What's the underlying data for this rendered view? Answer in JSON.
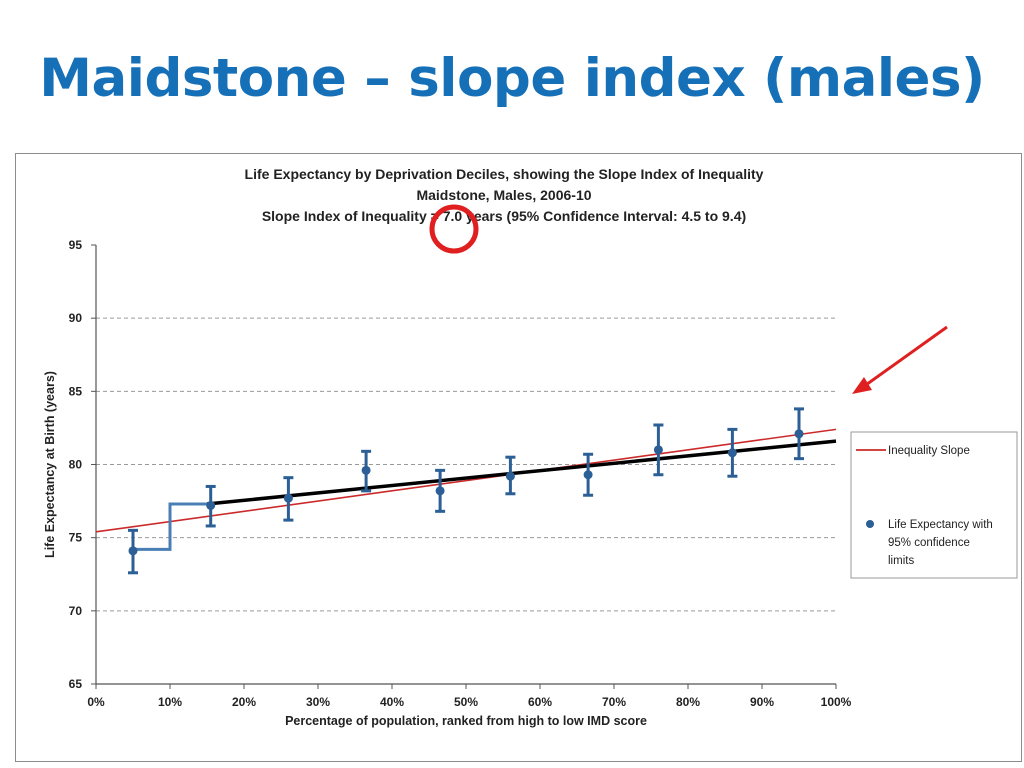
{
  "slide": {
    "title": "Maidstone – slope index (males)"
  },
  "chart_data": {
    "type": "scatter",
    "title_lines": [
      "Life Expectancy by Deprivation Deciles, showing the Slope Index of Inequality",
      "Maidstone, Males, 2006-10",
      "Slope Index of Inequality = 7.0 years (95% Confidence Interval: 4.5 to 9.4)"
    ],
    "xlabel": "Percentage of population, ranked from high to low IMD score",
    "ylabel": "Life Expectancy at Birth (years)",
    "xlim": [
      0,
      100
    ],
    "ylim": [
      65,
      95
    ],
    "x_ticks": [
      0,
      10,
      20,
      30,
      40,
      50,
      60,
      70,
      80,
      90,
      100
    ],
    "x_tick_labels": [
      "0%",
      "10%",
      "20%",
      "30%",
      "40%",
      "50%",
      "60%",
      "70%",
      "80%",
      "90%",
      "100%"
    ],
    "y_ticks": [
      65,
      70,
      75,
      80,
      85,
      90,
      95
    ],
    "y_tick_labels": [
      "65",
      "70",
      "75",
      "80",
      "85",
      "90",
      "95"
    ],
    "grid": "horizontal dashed",
    "legend_position": "right",
    "series": [
      {
        "name": "Life Expectancy with 95% confidence limits",
        "legend_lines": [
          "Life Expectancy with",
          "95% confidence",
          "limits"
        ],
        "color": "#2b5f95",
        "points": [
          {
            "x": 5,
            "y": 74.1,
            "low": 72.6,
            "high": 75.5
          },
          {
            "x": 15.5,
            "y": 77.2,
            "low": 75.8,
            "high": 78.5
          },
          {
            "x": 26,
            "y": 77.7,
            "low": 76.2,
            "high": 79.1
          },
          {
            "x": 36.5,
            "y": 79.6,
            "low": 78.2,
            "high": 80.9
          },
          {
            "x": 46.5,
            "y": 78.2,
            "low": 76.8,
            "high": 79.6
          },
          {
            "x": 56,
            "y": 79.2,
            "low": 78.0,
            "high": 80.5
          },
          {
            "x": 66.5,
            "y": 79.3,
            "low": 77.9,
            "high": 80.7
          },
          {
            "x": 76,
            "y": 81.0,
            "low": 79.3,
            "high": 82.7
          },
          {
            "x": 86,
            "y": 80.8,
            "low": 79.2,
            "high": 82.4
          },
          {
            "x": 95,
            "y": 82.1,
            "low": 80.4,
            "high": 83.8
          }
        ]
      },
      {
        "name": "Inequality Slope",
        "color": "#cc2a2a",
        "line": [
          {
            "x": 0,
            "y": 75.4
          },
          {
            "x": 100,
            "y": 82.4
          }
        ]
      }
    ],
    "regression_line": {
      "color": "#000000",
      "points": [
        {
          "x": 15,
          "y": 77.3
        },
        {
          "x": 100,
          "y": 81.6
        }
      ]
    },
    "step_line": {
      "color": "#4a7fb5",
      "points": [
        {
          "x": 5,
          "y": 74.2
        },
        {
          "x": 10,
          "y": 74.2
        },
        {
          "x": 10,
          "y": 77.3
        },
        {
          "x": 15,
          "y": 77.3
        }
      ]
    },
    "annotations": {
      "circle_color": "#e02020",
      "arrow_color": "#e02020"
    }
  }
}
